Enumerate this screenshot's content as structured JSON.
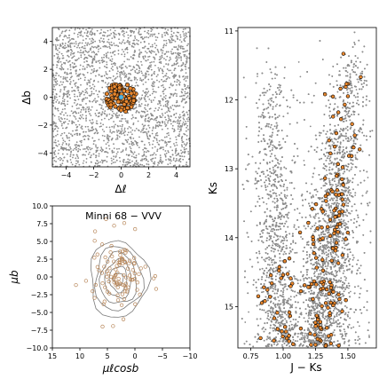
{
  "chart_data": [
    {
      "type": "scatter",
      "xlabel": "Δℓ",
      "ylabel": "Δb",
      "xlim": [
        -5,
        5
      ],
      "ylim": [
        -5,
        5
      ],
      "xticks": [
        -4,
        -2,
        0,
        2,
        4
      ],
      "yticks": [
        -4,
        -2,
        0,
        2,
        4
      ],
      "colors": {
        "field": "#8c8c8c",
        "members": "#e8872e",
        "edge": "#000000",
        "center": "#4fb3e0"
      },
      "series": [
        {
          "kind": "field-stars-uniform",
          "count": 2400,
          "x_range": [
            -5,
            5
          ],
          "y_range": [
            -5,
            5
          ]
        },
        {
          "kind": "member-stars",
          "count": 90,
          "center": [
            0,
            0
          ],
          "radius": 1.1
        }
      ]
    },
    {
      "type": "scatter",
      "title": "Minni 68  −  VVV",
      "xlabel": "μℓcosb",
      "ylabel": "μb",
      "xlim": [
        15,
        -10
      ],
      "ylim": [
        -10,
        10
      ],
      "xticks": [
        15,
        10,
        5,
        0,
        -5,
        -10
      ],
      "yticks": [
        10.0,
        7.5,
        5.0,
        2.5,
        0.0,
        -2.5,
        -5.0,
        -7.5,
        -10.0
      ],
      "ytick_labels": [
        "10.0",
        "7.5",
        "5.0",
        "2.5",
        "0.0",
        "−2.5",
        "−5.0",
        "−7.5",
        "−10.0"
      ],
      "colors": {
        "points": "#b8875a",
        "contours": "#7a7a7a"
      },
      "series": [
        {
          "kind": "proper-motion-cloud",
          "count": 110,
          "center": [
            3,
            0
          ],
          "sigma": [
            2.6,
            2.8
          ]
        },
        {
          "kind": "density-contours",
          "center": [
            3,
            -0.3
          ],
          "radii": [
            [
              0.9,
              0.9
            ],
            [
              1.6,
              1.8
            ],
            [
              2.4,
              2.7
            ],
            [
              3.3,
              3.6
            ],
            [
              4.3,
              4.5
            ],
            [
              5.3,
              5.4
            ]
          ]
        }
      ]
    },
    {
      "type": "scatter",
      "xlabel": "J − Ks",
      "ylabel": "Ks",
      "xlim": [
        0.65,
        1.72
      ],
      "ylim": [
        15.6,
        10.95
      ],
      "xticks": [
        0.75,
        1.0,
        1.25,
        1.5
      ],
      "xtick_labels": [
        "0.75",
        "1.00",
        "1.25",
        "1.50"
      ],
      "yticks": [
        11,
        12,
        13,
        14,
        15
      ],
      "colors": {
        "field": "#8c8c8c",
        "members": "#e8872e",
        "edge": "#000000"
      },
      "series": [
        {
          "kind": "cmd-field",
          "count": 9000
        },
        {
          "kind": "cmd-members",
          "count": 180
        }
      ]
    }
  ]
}
